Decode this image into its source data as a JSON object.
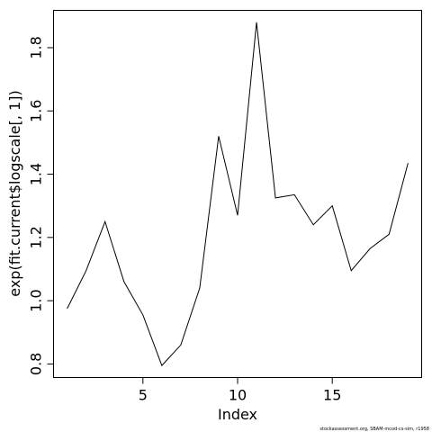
{
  "chart_data": {
    "type": "line",
    "title": "",
    "xlabel": "Index",
    "ylabel": "exp(fit.current$logscale[, 1])",
    "x": [
      1,
      2,
      3,
      4,
      5,
      6,
      7,
      8,
      9,
      10,
      11,
      12,
      13,
      14,
      15,
      16,
      17,
      18,
      19
    ],
    "series": [
      {
        "values": [
          0.975,
          1.095,
          1.25,
          1.06,
          0.955,
          0.795,
          0.86,
          1.04,
          1.52,
          1.27,
          1.88,
          1.325,
          1.335,
          1.24,
          1.3,
          1.095,
          1.165,
          1.21,
          1.435
        ],
        "color": "#000000"
      }
    ],
    "xlim": [
      0.28,
      19.72
    ],
    "ylim": [
      0.757,
      1.918
    ],
    "xticks": [
      5,
      10,
      15
    ],
    "yticks": [
      0.8,
      1.0,
      1.2,
      1.4,
      1.6,
      1.8
    ],
    "xtick_labels": [
      "5",
      "10",
      "15"
    ],
    "ytick_labels": [
      "0.8",
      "1.0",
      "1.2",
      "1.4",
      "1.6",
      "1.8"
    ],
    "grid": false,
    "legend": "none"
  },
  "footnote": "stockassessment.org, SBAM-mcod-cs-sim, r1958"
}
